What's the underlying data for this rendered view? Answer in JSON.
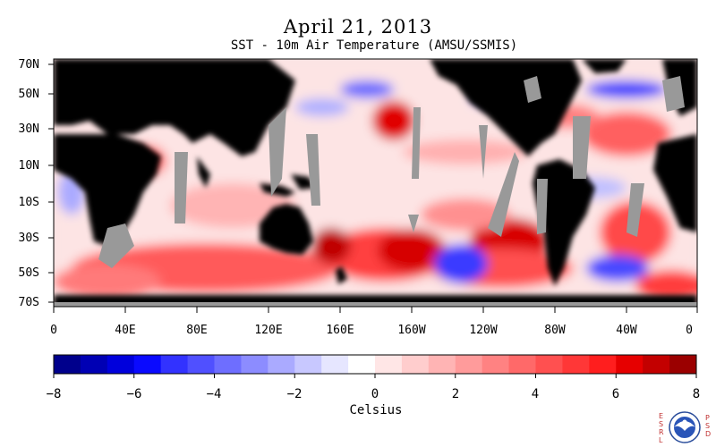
{
  "title": "April 21, 2013",
  "subtitle": "SST - 10m Air Temperature (AMSU/SSMIS)",
  "map": {
    "lat_labels": [
      "70N",
      "50N",
      "30N",
      "10N",
      "10S",
      "30S",
      "50S",
      "70S"
    ],
    "lon_labels": [
      "0",
      "40E",
      "80E",
      "120E",
      "160E",
      "160W",
      "120W",
      "80W",
      "40W",
      "0"
    ],
    "colors": {
      "land": "#000000",
      "missing": "#999999",
      "frame": "#000000"
    }
  },
  "colorbar": {
    "title": "Celsius",
    "tick_labels": [
      "−8",
      "−6",
      "−4",
      "−2",
      "0",
      "2",
      "4",
      "6",
      "8"
    ],
    "min": -8,
    "max": 8,
    "colors": [
      "#00008c",
      "#0000b4",
      "#0000dc",
      "#0a0aff",
      "#3232ff",
      "#5050ff",
      "#6e6eff",
      "#8c8cff",
      "#aaaaff",
      "#c8c8ff",
      "#e6e6ff",
      "#ffffff",
      "#ffe6e6",
      "#ffcdcd",
      "#ffb4b4",
      "#ff9b9b",
      "#ff8282",
      "#ff6969",
      "#ff5050",
      "#ff3737",
      "#ff1e1e",
      "#e60000",
      "#c30000",
      "#9b0000"
    ]
  },
  "logo": {
    "left_text": "ESRL",
    "right_text": "PSD",
    "center_icon": "noaa-logo-icon"
  }
}
